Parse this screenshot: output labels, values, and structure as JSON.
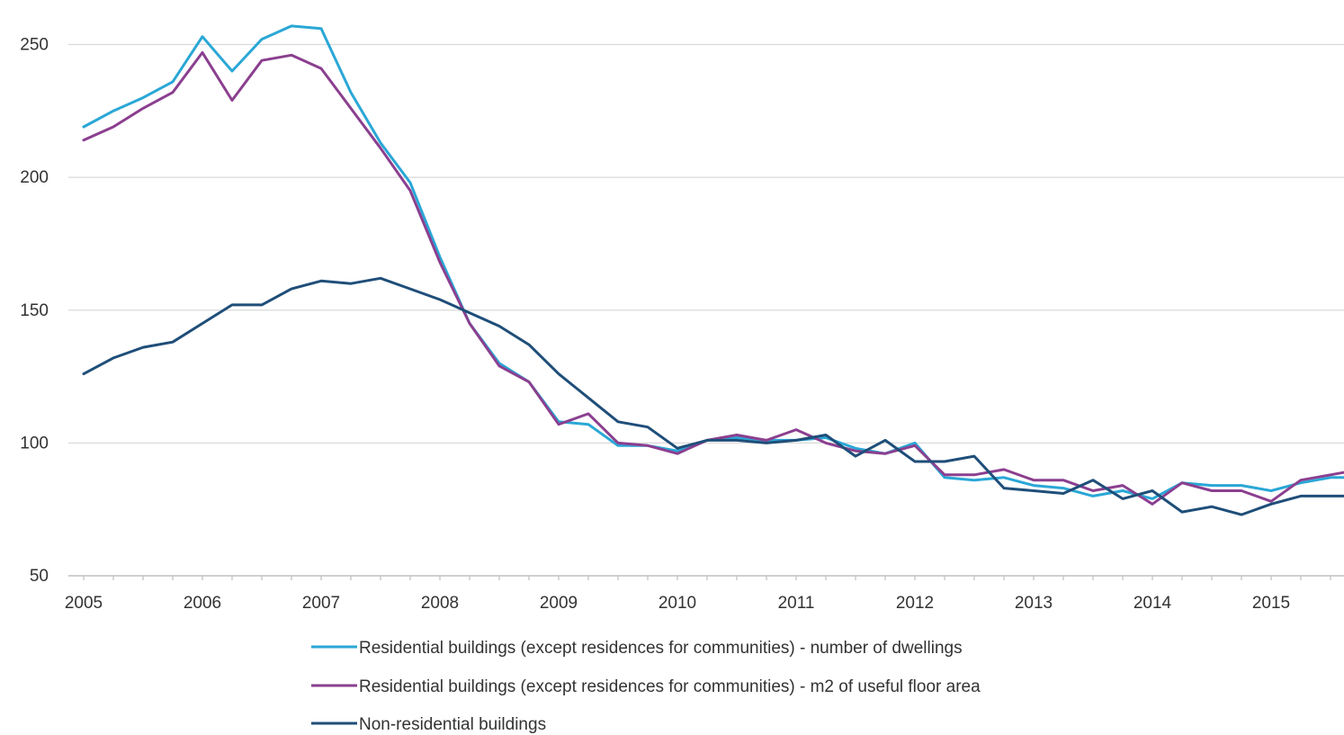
{
  "chart_data": {
    "type": "line",
    "x_labels": [
      "2005",
      "2006",
      "2007",
      "2008",
      "2009",
      "2010",
      "2011",
      "2012",
      "2013",
      "2014",
      "2015"
    ],
    "ylim": [
      50,
      260
    ],
    "yticks": [
      50,
      100,
      150,
      200,
      250
    ],
    "grid": true,
    "legend_position": "bottom",
    "series": [
      {
        "name": "Residential buildings (except residences for communities) - number of dwellings",
        "color": "#2aa7d6",
        "values": [
          219,
          225,
          230,
          236,
          253,
          240,
          252,
          257,
          256,
          232,
          213,
          198,
          170,
          145,
          130,
          123,
          108,
          107,
          99,
          99,
          97,
          101,
          102,
          101,
          101,
          102,
          98,
          96,
          100,
          87,
          86,
          87,
          84,
          83,
          80,
          82,
          79,
          85,
          84,
          84,
          82,
          85,
          87,
          87
        ]
      },
      {
        "name": "Residential buildings (except residences for communities) - m2 of useful floor area",
        "color": "#8b3f8f",
        "values": [
          214,
          219,
          226,
          232,
          247,
          229,
          244,
          246,
          241,
          226,
          211,
          195,
          168,
          145,
          129,
          123,
          107,
          111,
          100,
          99,
          96,
          101,
          103,
          101,
          105,
          100,
          97,
          96,
          99,
          88,
          88,
          90,
          86,
          86,
          82,
          84,
          77,
          85,
          82,
          82,
          78,
          86,
          88,
          90
        ]
      },
      {
        "name": "Non-residential buildings",
        "color": "#1f4e79",
        "values": [
          126,
          132,
          136,
          138,
          145,
          152,
          152,
          158,
          161,
          160,
          162,
          158,
          154,
          149,
          144,
          137,
          126,
          117,
          108,
          106,
          98,
          101,
          101,
          100,
          101,
          103,
          95,
          101,
          93,
          93,
          95,
          83,
          82,
          81,
          86,
          79,
          82,
          74,
          76,
          73,
          77,
          80,
          80,
          80
        ]
      }
    ]
  }
}
